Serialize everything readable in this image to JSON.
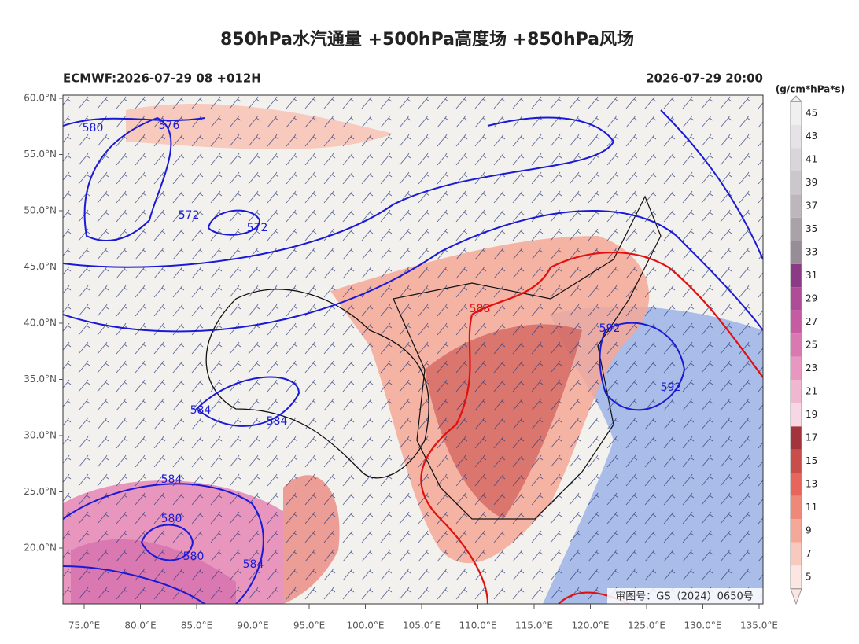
{
  "header": {
    "title": "850hPa水汽通量 +500hPa高度场 +850hPa风场",
    "model_run": "ECMWF:2026-07-29 08 +012H",
    "valid_time": "2026-07-29 20:00"
  },
  "colorbar": {
    "unit": "(g/cm*hPa*s)",
    "labels": [
      5,
      7,
      9,
      11,
      13,
      15,
      17,
      19,
      21,
      23,
      25,
      27,
      29,
      31,
      33,
      35,
      37,
      39,
      41,
      43,
      45
    ],
    "colors": [
      "#fbe6e1",
      "#f8c9bd",
      "#f4a897",
      "#ef8878",
      "#e8655c",
      "#c94d4b",
      "#a3343b",
      "#f7d7e4",
      "#f0b8d0",
      "#e898c0",
      "#d978b1",
      "#c65ba4",
      "#ae4c98",
      "#8c3a86",
      "#978d97",
      "#a9a2a9",
      "#bdb7bd",
      "#cbc7cb",
      "#d9d6d9",
      "#e5e3e6",
      "#f0f0f0"
    ]
  },
  "axes": {
    "lat_labels": [
      "60.0°N",
      "55.0°N",
      "50.0°N",
      "45.0°N",
      "40.0°N",
      "35.0°N",
      "30.0°N",
      "25.0°N",
      "20.0°N"
    ],
    "lon_labels": [
      "75.0°E",
      "80.0°E",
      "85.0°E",
      "90.0°E",
      "95.0°E",
      "100.0°E",
      "105.0°E",
      "110.0°E",
      "115.0°E",
      "120.0°E",
      "125.0°E",
      "130.0°E",
      "135.0°E"
    ]
  },
  "contour_labels": [
    {
      "text": "580",
      "color": "#1a1ad6"
    },
    {
      "text": "576",
      "color": "#1a1ad6"
    },
    {
      "text": "572",
      "color": "#1a1ad6"
    },
    {
      "text": "572",
      "color": "#1a1ad6"
    },
    {
      "text": "588",
      "color": "#e01010"
    },
    {
      "text": "592",
      "color": "#1a1ad6"
    },
    {
      "text": "592",
      "color": "#1a1ad6"
    },
    {
      "text": "584",
      "color": "#1a1ad6"
    },
    {
      "text": "584",
      "color": "#1a1ad6"
    },
    {
      "text": "584",
      "color": "#1a1ad6"
    },
    {
      "text": "580",
      "color": "#1a1ad6"
    },
    {
      "text": "580",
      "color": "#1a1ad6"
    },
    {
      "text": "584",
      "color": "#1a1ad6"
    }
  ],
  "watermark": "审图号：GS（2024）0650号"
}
